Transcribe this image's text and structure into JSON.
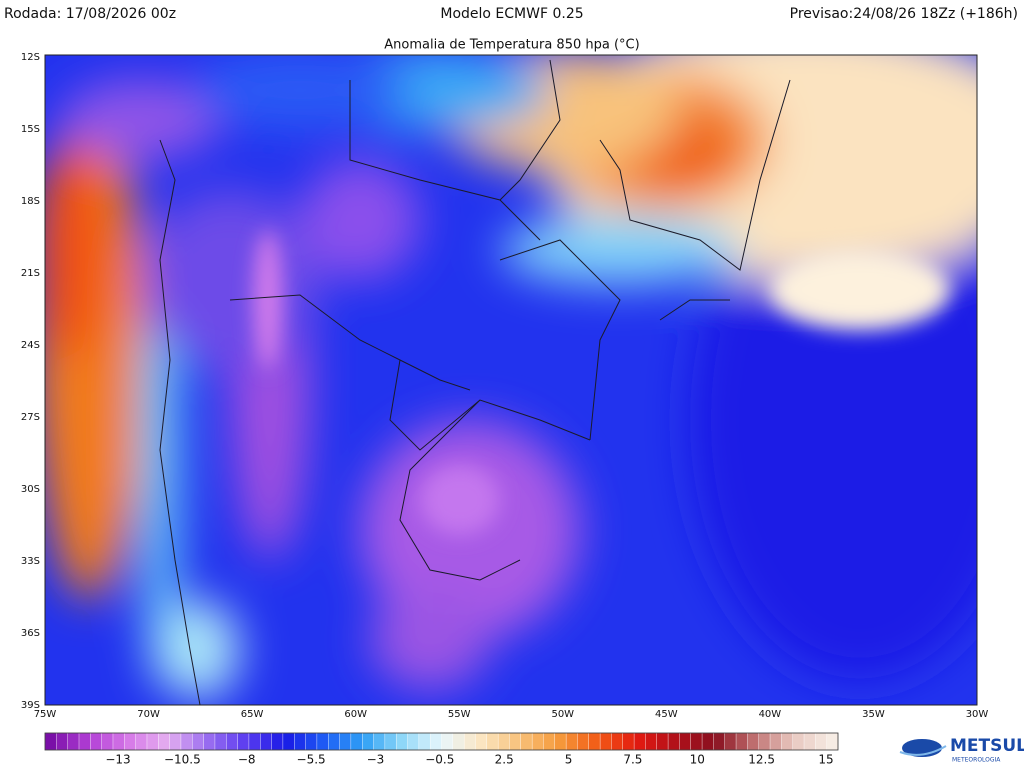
{
  "header": {
    "left": "Rodada: 17/08/2026 00z",
    "center": "Modelo ECMWF 0.25",
    "right": "Previsao:24/08/26 18Zz (+186h)"
  },
  "map": {
    "title": "Anomalia de Temperatura 850 hpa (°C)",
    "lat_labels": [
      "12S",
      "15S",
      "18S",
      "21S",
      "24S",
      "27S",
      "30S",
      "33S",
      "36S",
      "39S"
    ],
    "lon_labels": [
      "75W",
      "70W",
      "65W",
      "60W",
      "55W",
      "50W",
      "45W",
      "40W",
      "35W",
      "30W"
    ]
  },
  "colorbar": {
    "labels": [
      "−13",
      "−10.5",
      "−8",
      "−5.5",
      "−3",
      "−0.5",
      "2.5",
      "5",
      "7.5",
      "10",
      "12.5",
      "15"
    ],
    "colors": [
      "#7a0fa8",
      "#b23fd6",
      "#d77be8",
      "#e4aef0",
      "#9b6ef0",
      "#5a3cf0",
      "#1a1ae6",
      "#1e5cf5",
      "#2fa0f5",
      "#8fd8f8",
      "#e8f6fc",
      "#fbe6c2",
      "#f8c17a",
      "#f59a3c",
      "#f25a16",
      "#e31a10",
      "#b0101a",
      "#8a1020",
      "#c07070",
      "#e8c8c0",
      "#f6ece4"
    ]
  },
  "logo": {
    "name": "METSUL",
    "tagline": "METEOROLOGIA"
  }
}
